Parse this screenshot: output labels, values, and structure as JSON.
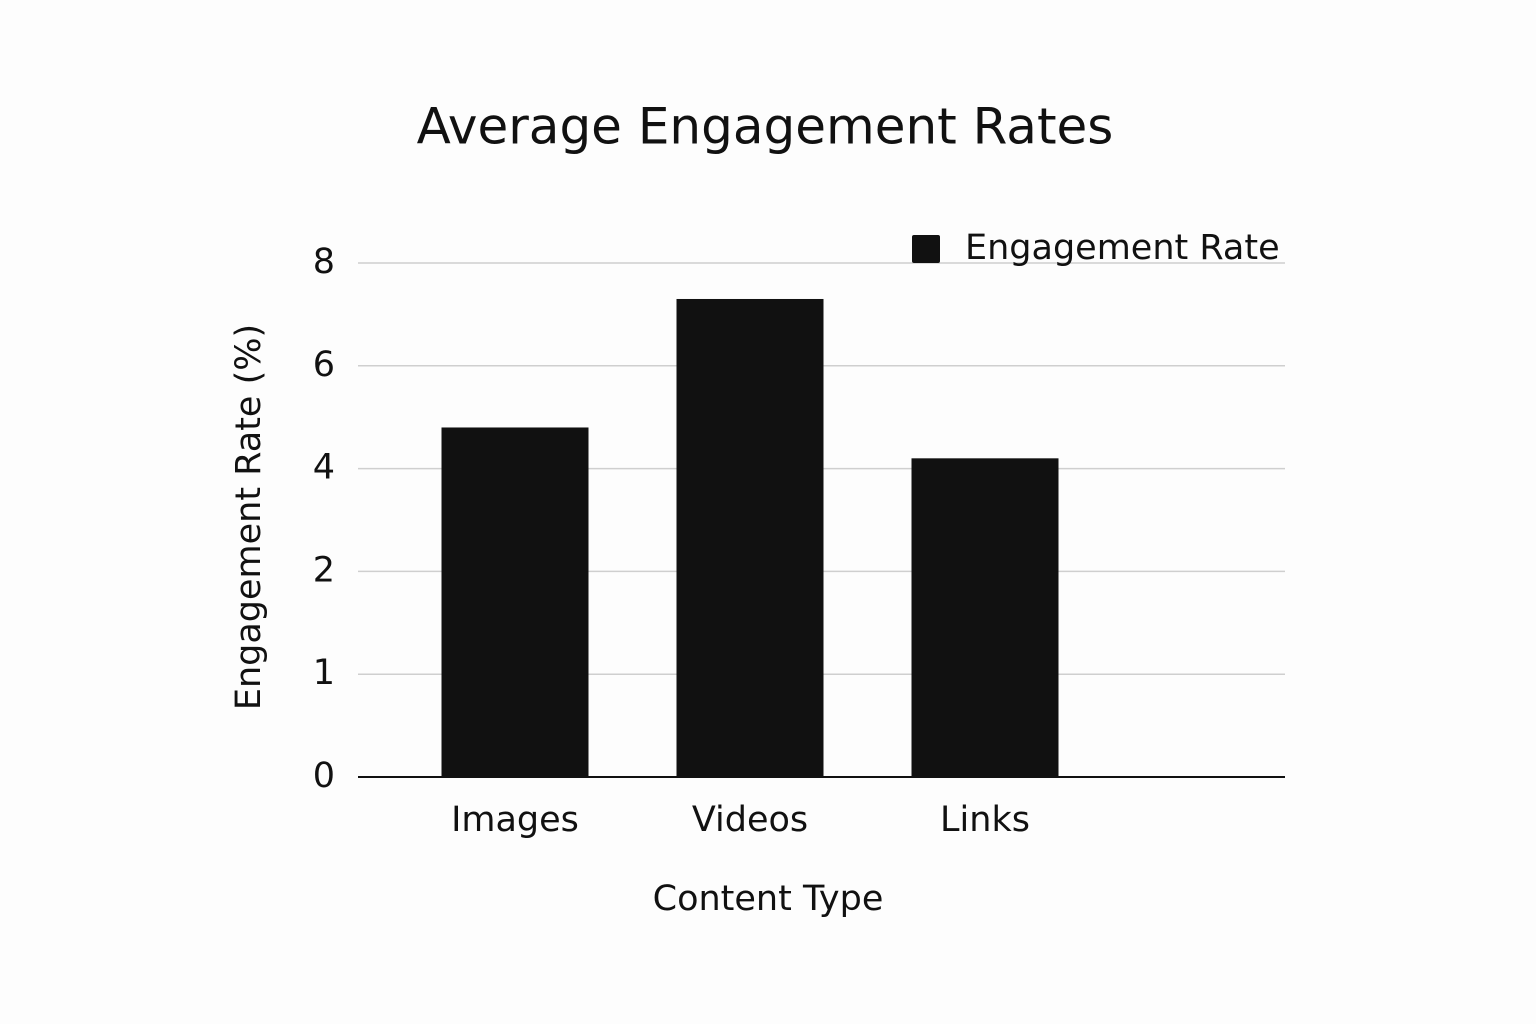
{
  "chart_data": {
    "type": "bar",
    "title": "Average Engagement Rates",
    "x_label": "Content Type",
    "y_label": "Engagement Rate (%)",
    "categories": [
      "Images",
      "Videos",
      "Links"
    ],
    "series": [
      {
        "name": "Engagement Rate",
        "color": "#111111",
        "values": [
          4.8,
          7.3,
          4.2
        ]
      }
    ],
    "ylim": [
      0,
      8
    ],
    "yticks": [
      0,
      1,
      2,
      4,
      6,
      8
    ],
    "grid": true,
    "legend": "top-right"
  }
}
